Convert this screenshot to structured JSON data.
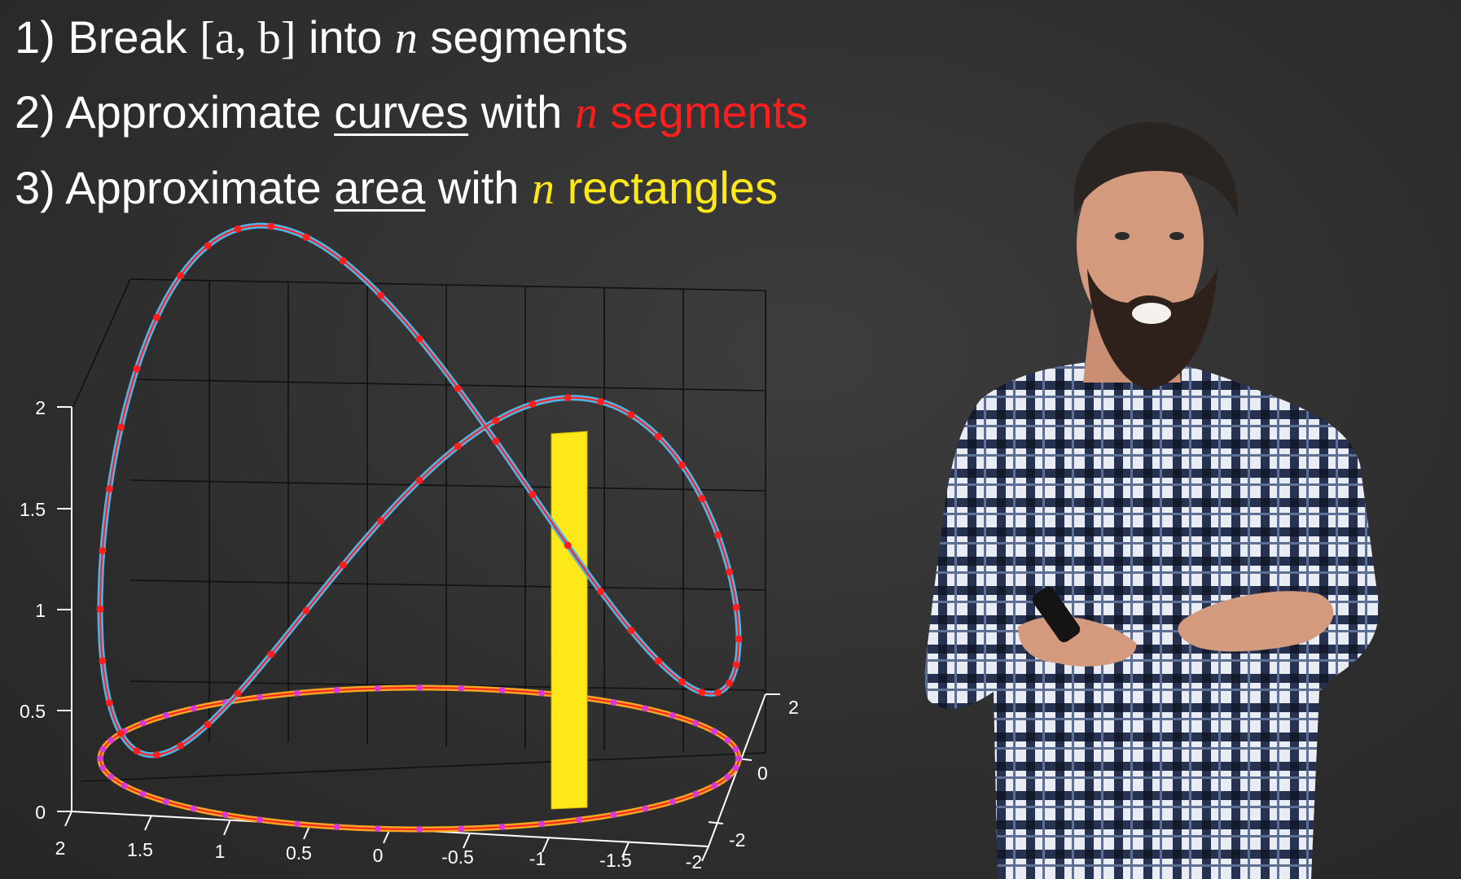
{
  "steps": {
    "s1": {
      "num": "1)",
      "pre": "Break",
      "interval": "[a, b]",
      "mid": "into",
      "var": "n",
      "post": "segments"
    },
    "s2": {
      "num": "2)",
      "pre": "Approximate",
      "word": "curves",
      "mid": "with",
      "var": "n",
      "post": "segments"
    },
    "s3": {
      "num": "3)",
      "pre": "Approximate",
      "word": "area",
      "mid": "with",
      "var": "n",
      "post": "rectangles"
    }
  },
  "plot": {
    "z_ticks": [
      "0",
      "0.5",
      "1",
      "1.5",
      "2"
    ],
    "x_ticks": [
      "2",
      "1.5",
      "1",
      "0.5",
      "0",
      "-0.5",
      "-1",
      "-1.5",
      "-2"
    ],
    "y_ticks": [
      "2",
      "0",
      "-2"
    ]
  },
  "colors": {
    "accent_red": "#ff1e1e",
    "accent_yellow": "#ffe81a",
    "space_curve": "#4fb4e8",
    "base_ellipse": "#f5a623",
    "sample_points": "#d63ad6"
  },
  "icons": [
    "presenter-remote-icon"
  ]
}
